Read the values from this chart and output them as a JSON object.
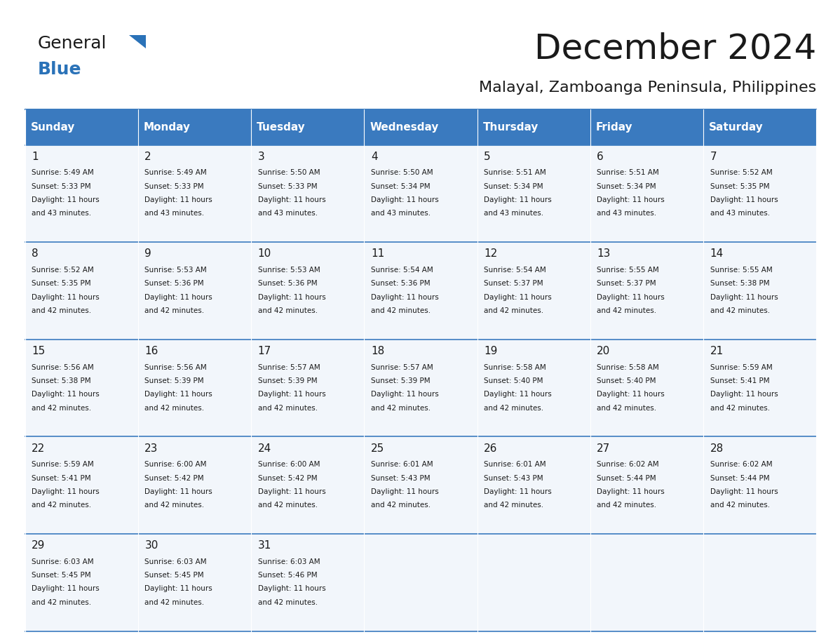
{
  "title": "December 2024",
  "subtitle": "Malayal, Zamboanga Peninsula, Philippines",
  "header_bg": "#3a7abf",
  "header_text_color": "#ffffff",
  "cell_bg": "#f2f6fb",
  "border_color": "#3a7abf",
  "days_of_week": [
    "Sunday",
    "Monday",
    "Tuesday",
    "Wednesday",
    "Thursday",
    "Friday",
    "Saturday"
  ],
  "calendar": [
    [
      {
        "day": 1,
        "sunrise": "5:49 AM",
        "sunset": "5:33 PM",
        "daylight": "11 hours and 43 minutes."
      },
      {
        "day": 2,
        "sunrise": "5:49 AM",
        "sunset": "5:33 PM",
        "daylight": "11 hours and 43 minutes."
      },
      {
        "day": 3,
        "sunrise": "5:50 AM",
        "sunset": "5:33 PM",
        "daylight": "11 hours and 43 minutes."
      },
      {
        "day": 4,
        "sunrise": "5:50 AM",
        "sunset": "5:34 PM",
        "daylight": "11 hours and 43 minutes."
      },
      {
        "day": 5,
        "sunrise": "5:51 AM",
        "sunset": "5:34 PM",
        "daylight": "11 hours and 43 minutes."
      },
      {
        "day": 6,
        "sunrise": "5:51 AM",
        "sunset": "5:34 PM",
        "daylight": "11 hours and 43 minutes."
      },
      {
        "day": 7,
        "sunrise": "5:52 AM",
        "sunset": "5:35 PM",
        "daylight": "11 hours and 43 minutes."
      }
    ],
    [
      {
        "day": 8,
        "sunrise": "5:52 AM",
        "sunset": "5:35 PM",
        "daylight": "11 hours and 42 minutes."
      },
      {
        "day": 9,
        "sunrise": "5:53 AM",
        "sunset": "5:36 PM",
        "daylight": "11 hours and 42 minutes."
      },
      {
        "day": 10,
        "sunrise": "5:53 AM",
        "sunset": "5:36 PM",
        "daylight": "11 hours and 42 minutes."
      },
      {
        "day": 11,
        "sunrise": "5:54 AM",
        "sunset": "5:36 PM",
        "daylight": "11 hours and 42 minutes."
      },
      {
        "day": 12,
        "sunrise": "5:54 AM",
        "sunset": "5:37 PM",
        "daylight": "11 hours and 42 minutes."
      },
      {
        "day": 13,
        "sunrise": "5:55 AM",
        "sunset": "5:37 PM",
        "daylight": "11 hours and 42 minutes."
      },
      {
        "day": 14,
        "sunrise": "5:55 AM",
        "sunset": "5:38 PM",
        "daylight": "11 hours and 42 minutes."
      }
    ],
    [
      {
        "day": 15,
        "sunrise": "5:56 AM",
        "sunset": "5:38 PM",
        "daylight": "11 hours and 42 minutes."
      },
      {
        "day": 16,
        "sunrise": "5:56 AM",
        "sunset": "5:39 PM",
        "daylight": "11 hours and 42 minutes."
      },
      {
        "day": 17,
        "sunrise": "5:57 AM",
        "sunset": "5:39 PM",
        "daylight": "11 hours and 42 minutes."
      },
      {
        "day": 18,
        "sunrise": "5:57 AM",
        "sunset": "5:39 PM",
        "daylight": "11 hours and 42 minutes."
      },
      {
        "day": 19,
        "sunrise": "5:58 AM",
        "sunset": "5:40 PM",
        "daylight": "11 hours and 42 minutes."
      },
      {
        "day": 20,
        "sunrise": "5:58 AM",
        "sunset": "5:40 PM",
        "daylight": "11 hours and 42 minutes."
      },
      {
        "day": 21,
        "sunrise": "5:59 AM",
        "sunset": "5:41 PM",
        "daylight": "11 hours and 42 minutes."
      }
    ],
    [
      {
        "day": 22,
        "sunrise": "5:59 AM",
        "sunset": "5:41 PM",
        "daylight": "11 hours and 42 minutes."
      },
      {
        "day": 23,
        "sunrise": "6:00 AM",
        "sunset": "5:42 PM",
        "daylight": "11 hours and 42 minutes."
      },
      {
        "day": 24,
        "sunrise": "6:00 AM",
        "sunset": "5:42 PM",
        "daylight": "11 hours and 42 minutes."
      },
      {
        "day": 25,
        "sunrise": "6:01 AM",
        "sunset": "5:43 PM",
        "daylight": "11 hours and 42 minutes."
      },
      {
        "day": 26,
        "sunrise": "6:01 AM",
        "sunset": "5:43 PM",
        "daylight": "11 hours and 42 minutes."
      },
      {
        "day": 27,
        "sunrise": "6:02 AM",
        "sunset": "5:44 PM",
        "daylight": "11 hours and 42 minutes."
      },
      {
        "day": 28,
        "sunrise": "6:02 AM",
        "sunset": "5:44 PM",
        "daylight": "11 hours and 42 minutes."
      }
    ],
    [
      {
        "day": 29,
        "sunrise": "6:03 AM",
        "sunset": "5:45 PM",
        "daylight": "11 hours and 42 minutes."
      },
      {
        "day": 30,
        "sunrise": "6:03 AM",
        "sunset": "5:45 PM",
        "daylight": "11 hours and 42 minutes."
      },
      {
        "day": 31,
        "sunrise": "6:03 AM",
        "sunset": "5:46 PM",
        "daylight": "11 hours and 42 minutes."
      },
      null,
      null,
      null,
      null
    ]
  ],
  "logo_text1": "General",
  "logo_text2": "Blue",
  "logo_text1_color": "#1a1a1a",
  "logo_text2_color": "#2a72b8",
  "logo_triangle_color": "#2a72b8"
}
